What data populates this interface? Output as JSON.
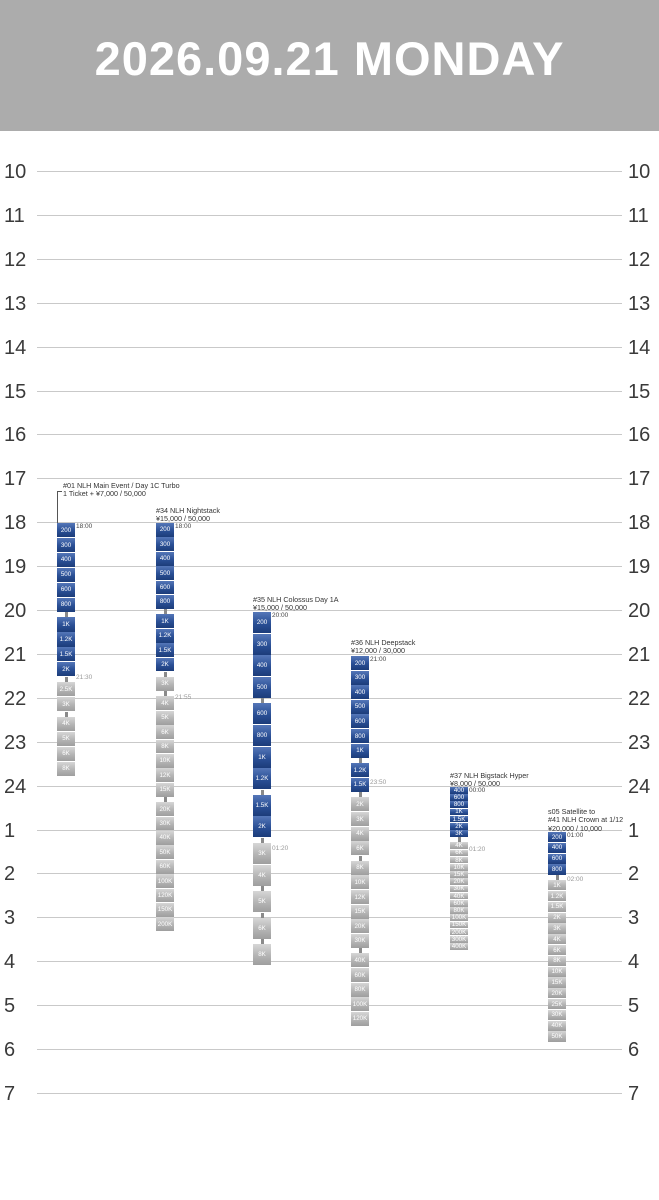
{
  "header": {
    "title": "2026.09.21 MONDAY",
    "background": "#acacac"
  },
  "timeline": {
    "hours": [
      "10",
      "11",
      "12",
      "13",
      "14",
      "15",
      "16",
      "17",
      "18",
      "19",
      "20",
      "21",
      "22",
      "23",
      "24",
      "1",
      "2",
      "3",
      "4",
      "5",
      "6",
      "7"
    ]
  },
  "colors": {
    "blue_level": "#2a4f95",
    "grey_level": "#b4b4b4"
  },
  "events": [
    {
      "title": "#01 NLH Main Event / Day 1C Turbo",
      "subtitle": "1 Ticket + ¥7,000 / 50,000",
      "start_time": "18:00",
      "late_reg": "21:30",
      "levels": [
        {
          "label": "200",
          "kind": "blue"
        },
        {
          "label": "300",
          "kind": "blue"
        },
        {
          "label": "400",
          "kind": "blue"
        },
        {
          "label": "500",
          "kind": "blue"
        },
        {
          "label": "600",
          "kind": "blue"
        },
        {
          "label": "800",
          "kind": "blue"
        },
        {
          "label": "1K",
          "kind": "blue"
        },
        {
          "label": "1.2K",
          "kind": "blue"
        },
        {
          "label": "1.5K",
          "kind": "blue"
        },
        {
          "label": "2K",
          "kind": "blue"
        },
        {
          "label": "2.5K",
          "kind": "grey"
        },
        {
          "label": "3K",
          "kind": "grey"
        },
        {
          "label": "4K",
          "kind": "grey"
        },
        {
          "label": "5K",
          "kind": "grey"
        },
        {
          "label": "6K",
          "kind": "grey"
        },
        {
          "label": "8K",
          "kind": "grey"
        }
      ]
    },
    {
      "title": "#34 NLH Nightstack",
      "subtitle": "¥15,000 / 50,000",
      "start_time": "18:00",
      "late_reg": "21:55",
      "levels": [
        {
          "label": "200",
          "kind": "blue"
        },
        {
          "label": "300",
          "kind": "blue"
        },
        {
          "label": "400",
          "kind": "blue"
        },
        {
          "label": "500",
          "kind": "blue"
        },
        {
          "label": "600",
          "kind": "blue"
        },
        {
          "label": "800",
          "kind": "blue"
        },
        {
          "label": "1K",
          "kind": "blue"
        },
        {
          "label": "1.2K",
          "kind": "blue"
        },
        {
          "label": "1.5K",
          "kind": "blue"
        },
        {
          "label": "2K",
          "kind": "blue"
        },
        {
          "label": "3K",
          "kind": "grey"
        },
        {
          "label": "4K",
          "kind": "grey"
        },
        {
          "label": "5K",
          "kind": "grey"
        },
        {
          "label": "6K",
          "kind": "grey"
        },
        {
          "label": "8K",
          "kind": "grey"
        },
        {
          "label": "10K",
          "kind": "grey"
        },
        {
          "label": "12K",
          "kind": "grey"
        },
        {
          "label": "15K",
          "kind": "grey"
        },
        {
          "label": "20K",
          "kind": "grey"
        },
        {
          "label": "30K",
          "kind": "grey"
        },
        {
          "label": "40K",
          "kind": "grey"
        },
        {
          "label": "50K",
          "kind": "grey"
        },
        {
          "label": "60K",
          "kind": "grey"
        },
        {
          "label": "100K",
          "kind": "grey"
        },
        {
          "label": "120K",
          "kind": "grey"
        },
        {
          "label": "150K",
          "kind": "grey"
        },
        {
          "label": "200K",
          "kind": "grey"
        }
      ]
    },
    {
      "title": "#35 NLH Colossus Day 1A",
      "subtitle": "¥15,000 / 50,000",
      "start_time": "20:00",
      "late_reg": "01:20",
      "levels": [
        {
          "label": "200",
          "kind": "blue"
        },
        {
          "label": "300",
          "kind": "blue"
        },
        {
          "label": "400",
          "kind": "blue"
        },
        {
          "label": "500",
          "kind": "blue"
        },
        {
          "label": "600",
          "kind": "blue"
        },
        {
          "label": "800",
          "kind": "blue"
        },
        {
          "label": "1K",
          "kind": "blue"
        },
        {
          "label": "1.2K",
          "kind": "blue"
        },
        {
          "label": "1.5K",
          "kind": "blue"
        },
        {
          "label": "2K",
          "kind": "blue"
        },
        {
          "label": "3K",
          "kind": "grey"
        },
        {
          "label": "4K",
          "kind": "grey"
        },
        {
          "label": "5K",
          "kind": "grey"
        },
        {
          "label": "6K",
          "kind": "grey"
        },
        {
          "label": "8K",
          "kind": "grey"
        }
      ]
    },
    {
      "title": "#36 NLH Deepstack",
      "subtitle": "¥12,000 / 30,000",
      "start_time": "21:00",
      "late_reg": "23:50",
      "levels": [
        {
          "label": "200",
          "kind": "blue"
        },
        {
          "label": "300",
          "kind": "blue"
        },
        {
          "label": "400",
          "kind": "blue"
        },
        {
          "label": "500",
          "kind": "blue"
        },
        {
          "label": "600",
          "kind": "blue"
        },
        {
          "label": "800",
          "kind": "blue"
        },
        {
          "label": "1K",
          "kind": "blue"
        },
        {
          "label": "1.2K",
          "kind": "blue"
        },
        {
          "label": "1.5K",
          "kind": "blue"
        },
        {
          "label": "2K",
          "kind": "grey"
        },
        {
          "label": "3K",
          "kind": "grey"
        },
        {
          "label": "4K",
          "kind": "grey"
        },
        {
          "label": "6K",
          "kind": "grey"
        },
        {
          "label": "8K",
          "kind": "grey"
        },
        {
          "label": "10K",
          "kind": "grey"
        },
        {
          "label": "12K",
          "kind": "grey"
        },
        {
          "label": "15K",
          "kind": "grey"
        },
        {
          "label": "20K",
          "kind": "grey"
        },
        {
          "label": "30K",
          "kind": "grey"
        },
        {
          "label": "40K",
          "kind": "grey"
        },
        {
          "label": "60K",
          "kind": "grey"
        },
        {
          "label": "80K",
          "kind": "grey"
        },
        {
          "label": "100K",
          "kind": "grey"
        },
        {
          "label": "120K",
          "kind": "grey"
        }
      ]
    },
    {
      "title": "#37 NLH Bigstack Hyper",
      "subtitle": "¥8,000 / 50,000",
      "start_time": "00:00",
      "late_reg": "01:20",
      "levels": [
        {
          "label": "400",
          "kind": "blue"
        },
        {
          "label": "600",
          "kind": "blue"
        },
        {
          "label": "800",
          "kind": "blue"
        },
        {
          "label": "1K",
          "kind": "blue"
        },
        {
          "label": "1.5K",
          "kind": "blue"
        },
        {
          "label": "2K",
          "kind": "blue"
        },
        {
          "label": "3K",
          "kind": "blue"
        },
        {
          "label": "4K",
          "kind": "grey"
        },
        {
          "label": "6K",
          "kind": "grey"
        },
        {
          "label": "8K",
          "kind": "grey"
        },
        {
          "label": "10K",
          "kind": "grey"
        },
        {
          "label": "15K",
          "kind": "grey"
        },
        {
          "label": "20K",
          "kind": "grey"
        },
        {
          "label": "30K",
          "kind": "grey"
        },
        {
          "label": "40K",
          "kind": "grey"
        },
        {
          "label": "60K",
          "kind": "grey"
        },
        {
          "label": "80K",
          "kind": "grey"
        },
        {
          "label": "100K",
          "kind": "grey"
        },
        {
          "label": "150K",
          "kind": "grey"
        },
        {
          "label": "200K",
          "kind": "grey"
        },
        {
          "label": "300K",
          "kind": "grey"
        },
        {
          "label": "400K",
          "kind": "grey"
        }
      ]
    },
    {
      "title": "s05 Satellite to",
      "subtitle": "#41 NLH Crown at 1/12",
      "subtitle2": "¥20,000 / 10,000",
      "start_time": "01:00",
      "late_reg": "02:00",
      "levels": [
        {
          "label": "200",
          "kind": "blue"
        },
        {
          "label": "400",
          "kind": "blue"
        },
        {
          "label": "600",
          "kind": "blue"
        },
        {
          "label": "800",
          "kind": "blue"
        },
        {
          "label": "1K",
          "kind": "grey"
        },
        {
          "label": "1.2K",
          "kind": "grey"
        },
        {
          "label": "1.5K",
          "kind": "grey"
        },
        {
          "label": "2K",
          "kind": "grey"
        },
        {
          "label": "3K",
          "kind": "grey"
        },
        {
          "label": "4K",
          "kind": "grey"
        },
        {
          "label": "6K",
          "kind": "grey"
        },
        {
          "label": "8K",
          "kind": "grey"
        },
        {
          "label": "10K",
          "kind": "grey"
        },
        {
          "label": "15K",
          "kind": "grey"
        },
        {
          "label": "20K",
          "kind": "grey"
        },
        {
          "label": "25K",
          "kind": "grey"
        },
        {
          "label": "30K",
          "kind": "grey"
        },
        {
          "label": "40K",
          "kind": "grey"
        },
        {
          "label": "50K",
          "kind": "grey"
        }
      ]
    }
  ]
}
